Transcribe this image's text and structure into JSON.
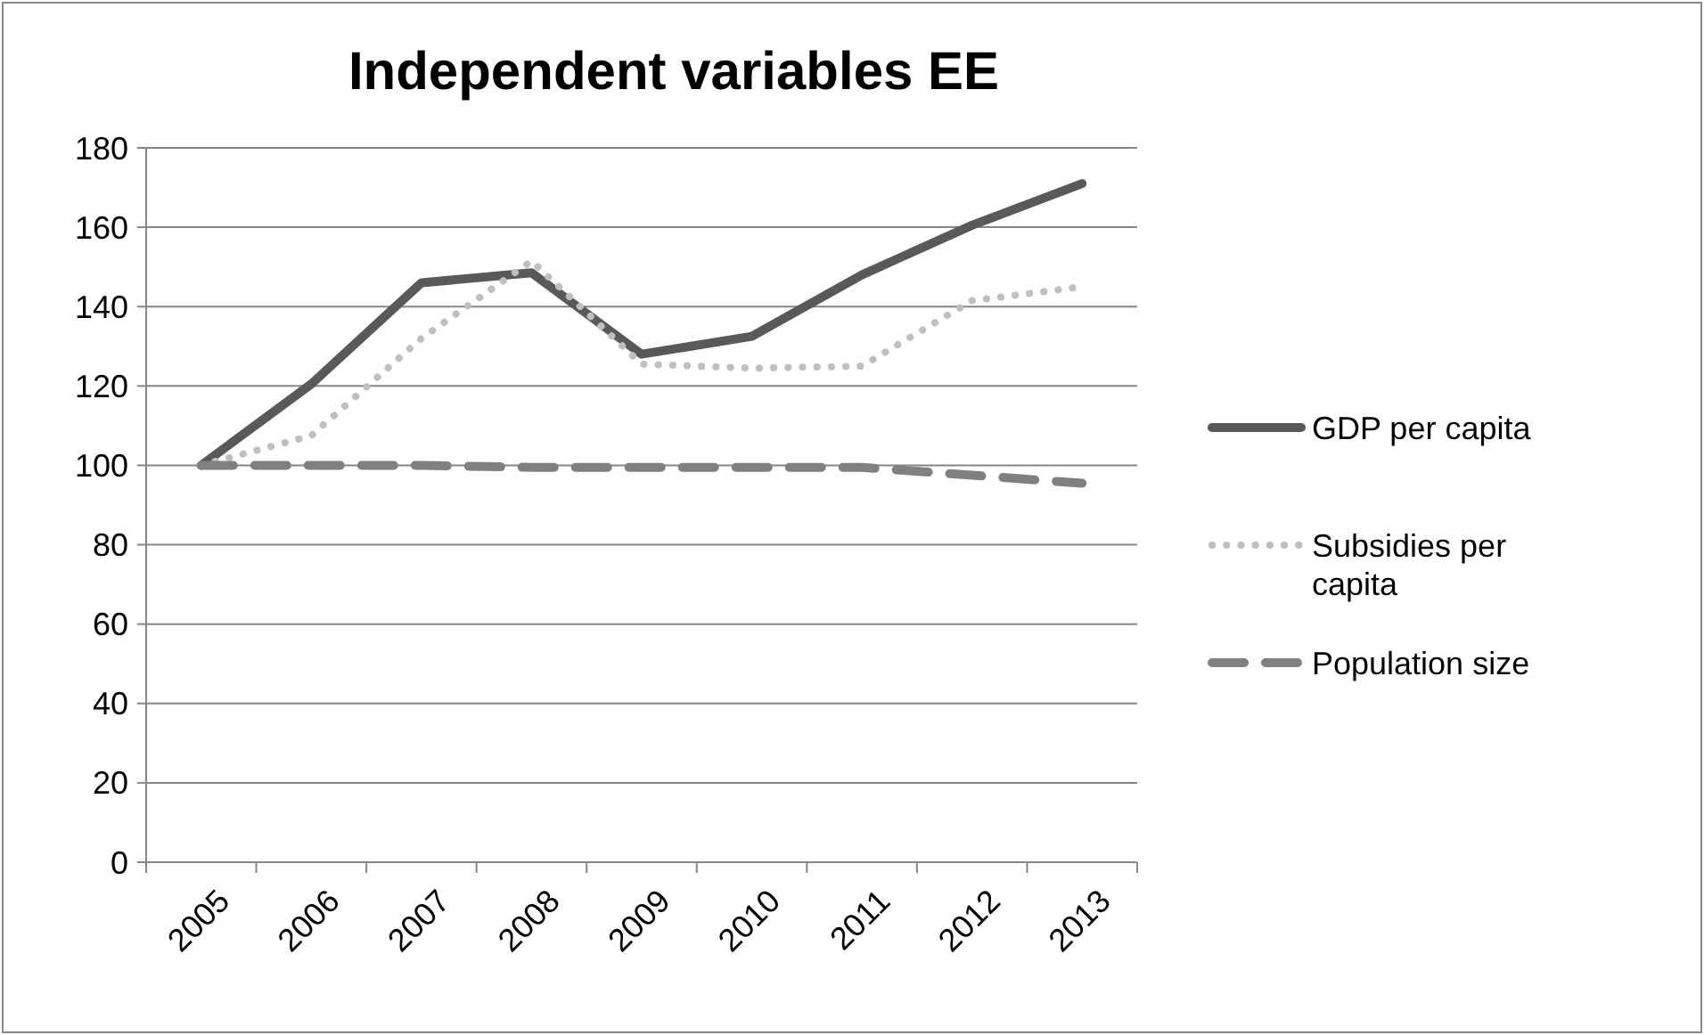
{
  "chart_data": {
    "type": "line",
    "title": "Independent variables EE",
    "categories": [
      "2005",
      "2006",
      "2007",
      "2008",
      "2009",
      "2010",
      "2011",
      "2012",
      "2013"
    ],
    "series": [
      {
        "name": "GDP per capita",
        "color": "#595959",
        "line_style": "solid",
        "values": [
          100,
          120.5,
          146,
          148.5,
          128,
          132.5,
          148,
          160.5,
          171
        ]
      },
      {
        "name": "Subsidies per capita",
        "color": "#bfbfbf",
        "line_style": "dotted",
        "values": [
          100,
          107.5,
          132,
          151.5,
          125.5,
          124.5,
          125,
          141.5,
          145
        ]
      },
      {
        "name": "Population size",
        "color": "#808080",
        "line_style": "dashed",
        "values": [
          100,
          100,
          100,
          99.5,
          99.5,
          99.5,
          99.5,
          97.5,
          95.5
        ]
      }
    ],
    "ylim": [
      0,
      180
    ],
    "yticks": [
      0,
      20,
      40,
      60,
      80,
      100,
      120,
      140,
      160,
      180
    ],
    "grid": "y",
    "legend": "right"
  }
}
